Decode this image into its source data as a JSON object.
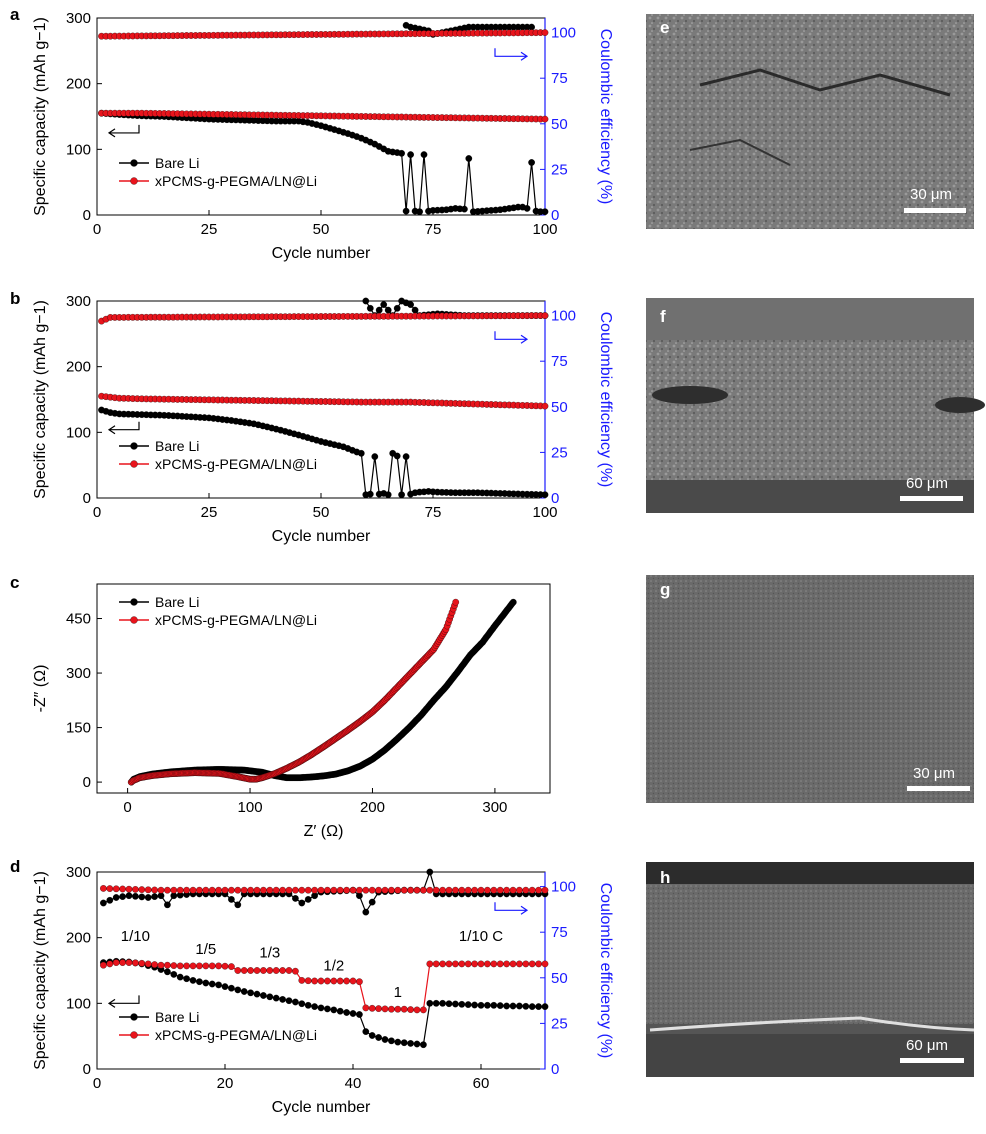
{
  "colors": {
    "bare": "#000000",
    "coated": "#e8141c",
    "right_axis": "#1a1aff"
  },
  "chart_data": [
    {
      "panel": "a",
      "type": "scatter",
      "xlabel": "Cycle number",
      "ylabel": "Specific capacity (mAh g−1)",
      "y2label": "Coulombic efficiency (%)",
      "xlim": [
        0,
        100
      ],
      "ylim": [
        0,
        300
      ],
      "y2lim": [
        0,
        108
      ],
      "xticks": [
        "0",
        "25",
        "50",
        "75",
        "100"
      ],
      "yticks": [
        "0",
        "100",
        "200",
        "300"
      ],
      "y2ticks": [
        "0",
        "25",
        "50",
        "75",
        "100"
      ],
      "legend": [
        "Bare Li",
        "xPCMS-g-PEGMA/LN@Li"
      ],
      "legend_position": "lower-left",
      "series": [
        {
          "name": "Bare Li",
          "axis": "left",
          "x": [
            1,
            5,
            10,
            15,
            20,
            25,
            30,
            35,
            40,
            45,
            47,
            50,
            53,
            56,
            59,
            62,
            65,
            67,
            68,
            69,
            70,
            71,
            72,
            73,
            74,
            75,
            78,
            80,
            82,
            83,
            84,
            86,
            88,
            90,
            92,
            94,
            95,
            96,
            97,
            98,
            99,
            100
          ],
          "y": [
            155,
            153,
            151,
            150,
            148,
            146,
            145,
            144,
            143,
            143,
            141,
            136,
            130,
            124,
            117,
            108,
            97,
            95,
            94,
            6,
            92,
            6,
            5,
            92,
            6,
            7,
            8,
            10,
            9,
            86,
            5,
            6,
            7,
            8,
            10,
            12,
            12,
            10,
            80,
            6,
            5,
            5
          ]
        },
        {
          "name": "Bare Li CE",
          "axis": "right",
          "x": [
            69,
            70,
            72,
            74,
            75,
            83,
            97
          ],
          "y": [
            104,
            103,
            102,
            101,
            99,
            103,
            103
          ]
        },
        {
          "name": "xPCMS-g-PEGMA/LN@Li",
          "axis": "left",
          "x": [
            1,
            10,
            20,
            30,
            40,
            50,
            60,
            70,
            80,
            90,
            100
          ],
          "y": [
            155,
            155,
            154,
            153,
            152,
            151,
            150,
            149,
            148,
            147,
            146
          ]
        },
        {
          "name": "xPCMS-g-PEGMA/LN@Li CE",
          "axis": "right",
          "x": [
            1,
            100
          ],
          "y": [
            98,
            100
          ]
        }
      ],
      "annotations": []
    },
    {
      "panel": "b",
      "type": "scatter",
      "xlabel": "Cycle number",
      "ylabel": "Specific capacity (mAh g−1)",
      "y2label": "Coulombic efficiency (%)",
      "xlim": [
        0,
        100
      ],
      "ylim": [
        0,
        300
      ],
      "y2lim": [
        0,
        108
      ],
      "xticks": [
        "0",
        "25",
        "50",
        "75",
        "100"
      ],
      "yticks": [
        "0",
        "100",
        "200",
        "300"
      ],
      "y2ticks": [
        "0",
        "25",
        "50",
        "75",
        "100"
      ],
      "legend": [
        "Bare Li",
        "xPCMS-g-PEGMA/LN@Li"
      ],
      "legend_position": "lower-left",
      "series": [
        {
          "name": "Bare Li",
          "axis": "left",
          "x": [
            1,
            3,
            5,
            10,
            15,
            20,
            25,
            30,
            35,
            40,
            45,
            50,
            55,
            58,
            59,
            60,
            61,
            62,
            63,
            64,
            65,
            66,
            67,
            68,
            69,
            70,
            71,
            72,
            74,
            76,
            80,
            85,
            90,
            95,
            100
          ],
          "y": [
            134,
            130,
            128,
            127,
            126,
            124,
            122,
            118,
            113,
            105,
            96,
            86,
            78,
            70,
            68,
            5,
            6,
            63,
            6,
            7,
            5,
            68,
            64,
            5,
            63,
            6,
            8,
            9,
            10,
            9,
            8,
            8,
            7,
            6,
            5
          ]
        },
        {
          "name": "Bare Li CE",
          "axis": "right",
          "x": [
            60,
            62,
            64,
            66,
            68,
            70,
            72,
            76,
            82,
            90,
            100
          ],
          "y": [
            108,
            100,
            106,
            100,
            108,
            106,
            100,
            101,
            100,
            100,
            100
          ]
        },
        {
          "name": "xPCMS-g-PEGMA/LN@Li",
          "axis": "left",
          "x": [
            1,
            5,
            10,
            20,
            30,
            40,
            50,
            60,
            70,
            80,
            90,
            100
          ],
          "y": [
            155,
            152,
            151,
            150,
            149,
            148,
            147,
            146,
            146,
            144,
            142,
            140
          ]
        },
        {
          "name": "xPCMS-g-PEGMA/LN@Li CE",
          "axis": "right",
          "x": [
            1,
            3,
            100
          ],
          "y": [
            97,
            99,
            100
          ]
        }
      ],
      "annotations": []
    },
    {
      "panel": "c",
      "type": "scatter",
      "xlabel": "Z′ (Ω)",
      "ylabel": "-Z″ (Ω)",
      "xlim": [
        -25,
        345
      ],
      "ylim": [
        -30,
        545
      ],
      "xticks": [
        "0",
        "100",
        "200",
        "300"
      ],
      "yticks": [
        "0",
        "150",
        "300",
        "450"
      ],
      "legend": [
        "Bare Li",
        "xPCMS-g-PEGMA/LN@Li"
      ],
      "legend_position": "top-left",
      "series": [
        {
          "name": "Bare Li",
          "x": [
            3,
            5,
            10,
            20,
            35,
            55,
            75,
            95,
            110,
            120,
            130,
            140,
            150,
            160,
            170,
            180,
            190,
            200,
            210,
            220,
            230,
            240,
            250,
            260,
            270,
            280,
            290,
            300,
            315
          ],
          "y": [
            0,
            8,
            15,
            22,
            28,
            33,
            35,
            33,
            27,
            18,
            12,
            12,
            14,
            17,
            22,
            31,
            44,
            63,
            88,
            118,
            150,
            185,
            225,
            262,
            305,
            350,
            385,
            430,
            495
          ]
        },
        {
          "name": "xPCMS-g-PEGMA/LN@Li",
          "x": [
            3,
            5,
            10,
            20,
            35,
            55,
            75,
            90,
            100,
            105,
            110,
            120,
            130,
            140,
            150,
            160,
            170,
            180,
            190,
            200,
            210,
            220,
            230,
            240,
            250,
            260,
            268
          ],
          "y": [
            0,
            5,
            12,
            18,
            23,
            26,
            24,
            15,
            8,
            8,
            12,
            23,
            38,
            55,
            75,
            97,
            120,
            143,
            167,
            193,
            225,
            260,
            295,
            330,
            365,
            420,
            495
          ]
        }
      ],
      "annotations": []
    },
    {
      "panel": "d",
      "type": "scatter",
      "xlabel": "Cycle number",
      "ylabel": "Specific capacity (mAh g−1)",
      "y2label": "Coulombic efficiency (%)",
      "xlim": [
        0,
        70
      ],
      "ylim": [
        0,
        300
      ],
      "y2lim": [
        0,
        108
      ],
      "xticks": [
        "0",
        "20",
        "40",
        "60"
      ],
      "yticks": [
        "0",
        "100",
        "200",
        "300"
      ],
      "y2ticks": [
        "0",
        "25",
        "50",
        "75",
        "100"
      ],
      "legend": [
        "Bare Li",
        "xPCMS-g-PEGMA/LN@Li"
      ],
      "legend_position": "lower-left",
      "series": [
        {
          "name": "Bare Li",
          "axis": "left",
          "x": [
            1,
            3,
            5,
            7,
            9,
            11,
            13,
            15,
            17,
            19,
            21,
            23,
            25,
            27,
            29,
            31,
            33,
            35,
            37,
            39,
            41,
            42,
            43,
            45,
            47,
            49,
            51,
            52,
            54,
            56,
            58,
            60,
            62,
            64,
            66,
            68,
            70
          ],
          "y": [
            162,
            164,
            163,
            160,
            155,
            148,
            140,
            135,
            131,
            128,
            123,
            118,
            114,
            110,
            106,
            102,
            97,
            93,
            90,
            86,
            83,
            57,
            51,
            45,
            41,
            39,
            37,
            100,
            100,
            99,
            98,
            97,
            97,
            96,
            96,
            95,
            95
          ]
        },
        {
          "name": "Bare Li CE",
          "axis": "right",
          "x": [
            1,
            3,
            5,
            8,
            10,
            11,
            12,
            15,
            20,
            22,
            23,
            25,
            30,
            32,
            35,
            40,
            41,
            42,
            44,
            48,
            51,
            52,
            53,
            55,
            60,
            65,
            70
          ],
          "y": [
            91,
            94,
            95,
            94,
            95,
            90,
            95,
            96,
            96,
            90,
            96,
            96,
            96,
            91,
            97,
            98,
            95,
            86,
            97,
            98,
            98,
            108,
            96,
            96,
            96,
            96,
            96
          ]
        },
        {
          "name": "xPCMS-g-PEGMA/LN@Li",
          "axis": "left",
          "x": [
            1,
            3,
            5,
            7,
            9,
            10,
            11,
            13,
            15,
            17,
            19,
            21,
            22,
            24,
            26,
            28,
            30,
            31,
            32,
            34,
            36,
            38,
            40,
            41,
            42,
            44,
            46,
            48,
            50,
            51,
            52,
            54,
            56,
            58,
            60,
            62,
            64,
            66,
            68,
            70
          ],
          "y": [
            158,
            162,
            162,
            161,
            159,
            158,
            158,
            157,
            157,
            157,
            157,
            156,
            150,
            150,
            150,
            150,
            150,
            149,
            135,
            134,
            134,
            134,
            134,
            133,
            93,
            92,
            91,
            91,
            90,
            90,
            160,
            160,
            160,
            160,
            160,
            160,
            160,
            160,
            160,
            160
          ]
        },
        {
          "name": "xPCMS-g-PEGMA/LN@Li CE",
          "axis": "right",
          "x": [
            1,
            10,
            20,
            30,
            40,
            50,
            60,
            70
          ],
          "y": [
            99,
            98,
            98,
            98,
            98,
            98,
            98,
            98
          ]
        }
      ],
      "annotations": [
        "1/10",
        "1/5",
        "1/3",
        "1/2",
        "1",
        "1/10 C"
      ]
    }
  ],
  "panels": {
    "a": {
      "letter": "a"
    },
    "b": {
      "letter": "b"
    },
    "c": {
      "letter": "c"
    },
    "d": {
      "letter": "d"
    }
  },
  "images": [
    {
      "letter": "e",
      "scale_label": "30 μm"
    },
    {
      "letter": "f",
      "scale_label": "60 μm"
    },
    {
      "letter": "g",
      "scale_label": "30 μm"
    },
    {
      "letter": "h",
      "scale_label": "60 μm"
    }
  ]
}
